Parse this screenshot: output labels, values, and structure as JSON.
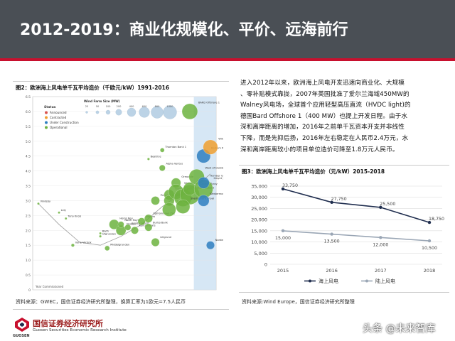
{
  "header": {
    "title": "2012-2019：商业化规模化、平价、远海前行"
  },
  "figure2": {
    "caption": "图2：欧洲海上风电单千瓦平均造价（千欧元/kW）1991-2016",
    "source": "资料来源：GWEC，国信证券经济研究所整理，换算汇率为1欧元=7.5人民币",
    "chart_data": {
      "type": "scatter",
      "title": "",
      "y_ticks": [
        "0",
        "0.5",
        "1.0",
        "1.5",
        "2.0",
        "2.5",
        "3.0",
        "3.5",
        "4.0",
        "4.5",
        "5.0",
        "5.5",
        "6.0",
        "6.5"
      ],
      "y_range": [
        0,
        6.5
      ],
      "x_range": [
        1991,
        2016
      ],
      "legend_title": "Status",
      "legend": [
        "Announced",
        "Contracted",
        "Under Construction",
        "Operational"
      ],
      "size_legend_title": "Wind Farm Size (MW)",
      "size_legend": [
        "25",
        "50",
        "100",
        "200",
        "400",
        "600",
        "800",
        "1000"
      ],
      "x_axis_note": "Year Commissioned",
      "highlight_band": [
        2014,
        2016
      ],
      "points": [
        {
          "label": "Vindeby",
          "x": 1991,
          "y": 2.9,
          "status": "Operational",
          "size": 5
        },
        {
          "label": "Lely",
          "x": 1994,
          "y": 2.6,
          "status": "Operational",
          "size": 2
        },
        {
          "label": "Tuno Knob",
          "x": 1995,
          "y": 2.4,
          "status": "Operational",
          "size": 5
        },
        {
          "label": "Irene Vorrink",
          "x": 1996,
          "y": 1.5,
          "status": "Operational",
          "size": 17
        },
        {
          "label": "Utgrunden",
          "x": 2000,
          "y": 1.8,
          "status": "Operational",
          "size": 10
        },
        {
          "label": "Blyth",
          "x": 2000,
          "y": 1.9,
          "status": "Operational",
          "size": 4
        },
        {
          "label": "Middelgrunden",
          "x": 2001,
          "y": 1.4,
          "status": "Operational",
          "size": 40
        },
        {
          "label": "Horns Rev",
          "x": 2002,
          "y": 2.2,
          "status": "Operational",
          "size": 160
        },
        {
          "label": "Nysted",
          "x": 2003,
          "y": 2.0,
          "status": "Operational",
          "size": 166
        },
        {
          "label": "North Hoyle",
          "x": 2003,
          "y": 2.2,
          "status": "Operational",
          "size": 60
        },
        {
          "label": "Scroby Sands",
          "x": 2004,
          "y": 2.1,
          "status": "Operational",
          "size": 60
        },
        {
          "label": "Kentish Flats",
          "x": 2005,
          "y": 2.0,
          "status": "Operational",
          "size": 90
        },
        {
          "label": "Barrow",
          "x": 2006,
          "y": 2.3,
          "status": "Operational",
          "size": 90
        },
        {
          "label": "Egmond aan Zee",
          "x": 2007,
          "y": 2.4,
          "status": "Operational",
          "size": 108
        },
        {
          "label": "Burbo Bank",
          "x": 2007,
          "y": 2.1,
          "status": "Operational",
          "size": 90
        },
        {
          "label": "Lillgrund",
          "x": 2008,
          "y": 1.6,
          "status": "Operational",
          "size": 110
        },
        {
          "label": "Princess Amalia",
          "x": 2008,
          "y": 3.0,
          "status": "Operational",
          "size": 120
        },
        {
          "label": "Beatrice",
          "x": 2007,
          "y": 4.4,
          "status": "Operational",
          "size": 10
        },
        {
          "label": "Alpha Ventus",
          "x": 2009,
          "y": 4.1,
          "status": "Operational",
          "size": 60
        },
        {
          "label": "Thornton Bank 1",
          "x": 2009,
          "y": 4.7,
          "status": "Operational",
          "size": 30
        },
        {
          "label": "Gunfleet Sands",
          "x": 2010,
          "y": 3.2,
          "status": "Operational",
          "size": 172
        },
        {
          "label": "Robin Rigg",
          "x": 2010,
          "y": 3.0,
          "status": "Operational",
          "size": 180
        },
        {
          "label": "Thanet",
          "x": 2010,
          "y": 2.7,
          "status": "Operational",
          "size": 300
        },
        {
          "label": "Ormonde",
          "x": 2011,
          "y": 3.6,
          "status": "Operational",
          "size": 150
        },
        {
          "label": "Walney",
          "x": 2011,
          "y": 3.3,
          "status": "Operational",
          "size": 367
        },
        {
          "label": "Greater Gabbard",
          "x": 2012,
          "y": 3.1,
          "status": "Operational",
          "size": 504
        },
        {
          "label": "London Array",
          "x": 2013,
          "y": 3.2,
          "status": "Operational",
          "size": 630
        },
        {
          "label": "Sheringham Shoal",
          "x": 2012,
          "y": 2.8,
          "status": "Operational",
          "size": 317
        },
        {
          "label": "Lincs",
          "x": 2013,
          "y": 3.4,
          "status": "Operational",
          "size": 270
        },
        {
          "label": "West of Duddon",
          "x": 2014,
          "y": 3.8,
          "status": "Operational",
          "size": 389
        },
        {
          "label": "Gwynt y Mor",
          "x": 2015,
          "y": 3.4,
          "status": "Operational",
          "size": 576
        },
        {
          "label": "Humber Gateway",
          "x": 2015,
          "y": 3.6,
          "status": "Under Construction",
          "size": 219
        },
        {
          "label": "Westermost Rough",
          "x": 2015,
          "y": 3.0,
          "status": "Under Construction",
          "size": 210
        },
        {
          "label": "BARD Offshore 1",
          "x": 2013,
          "y": 6.0,
          "status": "Operational",
          "size": 400
        },
        {
          "label": "Borkum Riffgrund",
          "x": 2015,
          "y": 4.5,
          "status": "Under Construction",
          "size": 312
        },
        {
          "label": "Wikinger",
          "x": 2016,
          "y": 4.8,
          "status": "Contracted",
          "size": 350
        },
        {
          "label": "Nordergrunde",
          "x": 2016,
          "y": 1.5,
          "status": "Under Construction",
          "size": 110
        }
      ]
    }
  },
  "paragraph": [
    "进入2012年以来，欧洲海上风电开发迅速向商业化、大规模",
    "、零补贴模式靠拢，2007年英国批准了爱尔兰海域450MW的",
    "Walney风电场，全球首个应用轻型高压直流（HVDC light)的",
    "德国Bard Offshore 1（400 MW）也提上开发日程。由于水",
    "深和离岸距离的增加，2016年之前单千瓦资本开支并非线性",
    "下降，而是先抑后扬，2016年左右稳定在人民币2.4万元，水",
    "深和离岸距离较小的项目单位造价可降至1.8万元人民币。"
  ],
  "figure3": {
    "caption": "图3：欧洲海上风电单千瓦平均造价（元/kW）2015-2018",
    "source": "资料来源:Wind Europe，国信证券经济研究所整理",
    "chart_data": {
      "type": "line",
      "title": "",
      "categories": [
        "2015",
        "2016",
        "2017",
        "2018"
      ],
      "ylim": [
        0,
        35000
      ],
      "y_ticks": [
        "0",
        "5,000",
        "10,000",
        "15,000",
        "20,000",
        "25,000",
        "30,000",
        "35,000"
      ],
      "grid": true,
      "legend_position": "bottom",
      "series": [
        {
          "name": "海上风电",
          "values": [
            33750,
            27750,
            25500,
            18750
          ],
          "labels": [
            "33,750",
            "27,750",
            "25,500",
            "18,750"
          ],
          "color": "#1f2d4e"
        },
        {
          "name": "陆上风电",
          "values": [
            15000,
            13500,
            12000,
            10500
          ],
          "labels": [
            "15,000",
            "13,500",
            "12,000",
            "10,500"
          ],
          "color": "#9aa6b5"
        }
      ]
    }
  },
  "footer": {
    "logo_cn": "国信证券经济研究所",
    "logo_en": "Guosen Securities Economic Research Institute",
    "logo_abbr": "GUOSEN",
    "watermark": "头条 @未来智库"
  }
}
